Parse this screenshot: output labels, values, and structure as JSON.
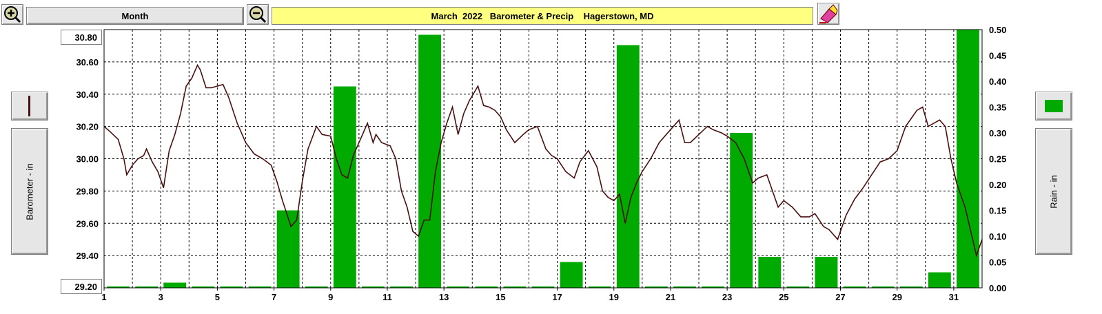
{
  "toolbar": {
    "zoom_in_icon": "magnifier-plus-icon",
    "zoom_out_icon": "magnifier-minus-icon",
    "period_label": "Month",
    "title": "March  2022   Barometer & Precip    Hagerstown, MD",
    "eraser_icon": "eraser-icon"
  },
  "left_panel": {
    "series_icon": "line-legend-icon",
    "axis_label": "Barometer - in",
    "top_readout": "30.80",
    "bottom_readout": "29.20"
  },
  "right_panel": {
    "series_icon": "bar-legend-icon",
    "axis_label": "Rain - in"
  },
  "colors": {
    "barometer_line": "#4a1010",
    "rain_bar": "#00aa00",
    "title_bg": "#ffff80",
    "grid": "#000000"
  },
  "chart_data": {
    "type": "bar+line",
    "title": "March  2022   Barometer & Precip    Hagerstown, MD",
    "x_ticks": [
      "1",
      "3",
      "5",
      "7",
      "9",
      "11",
      "13",
      "15",
      "17",
      "19",
      "21",
      "23",
      "25",
      "27",
      "29",
      "31"
    ],
    "xlim": [
      1,
      32
    ],
    "grid": true,
    "left_axis": {
      "label": "Barometer - in",
      "ylim": [
        29.2,
        30.8
      ],
      "ticks": [
        "29.20",
        "29.40",
        "29.60",
        "29.80",
        "30.00",
        "30.20",
        "30.40",
        "30.60",
        "30.80"
      ]
    },
    "right_axis": {
      "label": "Rain - in",
      "ylim": [
        0.0,
        0.5
      ],
      "ticks": [
        "0.00",
        "0.05",
        "0.10",
        "0.15",
        "0.20",
        "0.25",
        "0.30",
        "0.35",
        "0.40",
        "0.45",
        "0.50"
      ]
    },
    "rain_series": {
      "name": "Rain - in",
      "days": [
        1,
        2,
        3,
        4,
        5,
        6,
        7,
        8,
        9,
        10,
        11,
        12,
        13,
        14,
        15,
        16,
        17,
        18,
        19,
        20,
        21,
        22,
        23,
        24,
        25,
        26,
        27,
        28,
        29,
        30,
        31
      ],
      "values": [
        0,
        0,
        0.01,
        0,
        0,
        0,
        0.15,
        0,
        0.39,
        0,
        0,
        0.49,
        0,
        0,
        0,
        0,
        0.05,
        0,
        0.47,
        0,
        0,
        0,
        0.3,
        0.06,
        0,
        0.06,
        0,
        0,
        0,
        0.03,
        0.5
      ]
    },
    "barometer_series": {
      "name": "Barometer - in",
      "x": [
        1.0,
        1.2,
        1.5,
        1.7,
        1.8,
        2.0,
        2.2,
        2.4,
        2.5,
        2.7,
        2.9,
        3.1,
        3.3,
        3.5,
        3.7,
        3.9,
        4.1,
        4.3,
        4.4,
        4.6,
        4.8,
        5.0,
        5.2,
        5.4,
        5.7,
        6.0,
        6.3,
        6.6,
        6.9,
        7.1,
        7.3,
        7.6,
        7.8,
        8.0,
        8.2,
        8.5,
        8.7,
        9.0,
        9.2,
        9.4,
        9.6,
        9.8,
        10.0,
        10.3,
        10.5,
        10.6,
        10.8,
        11.1,
        11.3,
        11.5,
        11.7,
        11.9,
        12.1,
        12.3,
        12.5,
        12.7,
        12.9,
        13.1,
        13.3,
        13.5,
        13.7,
        13.9,
        14.2,
        14.4,
        14.6,
        14.8,
        15.0,
        15.2,
        15.5,
        15.8,
        16.0,
        16.3,
        16.6,
        16.8,
        17.0,
        17.3,
        17.6,
        17.8,
        18.1,
        18.4,
        18.6,
        18.8,
        19.0,
        19.2,
        19.4,
        19.6,
        19.8,
        20.0,
        20.3,
        20.6,
        21.0,
        21.3,
        21.5,
        21.7,
        22.0,
        22.3,
        22.5,
        22.8,
        23.0,
        23.3,
        23.6,
        23.9,
        24.1,
        24.4,
        24.6,
        24.8,
        25.0,
        25.3,
        25.6,
        25.9,
        26.1,
        26.4,
        26.6,
        26.9,
        27.2,
        27.5,
        27.8,
        28.1,
        28.4,
        28.7,
        29.0,
        29.3,
        29.5,
        29.7,
        29.9,
        30.1,
        30.3,
        30.5,
        30.7,
        30.9,
        31.1,
        31.4,
        31.6,
        31.8,
        32.0
      ],
      "values": [
        30.2,
        30.17,
        30.12,
        30.0,
        29.9,
        29.96,
        30.0,
        30.02,
        30.06,
        29.98,
        29.92,
        29.82,
        30.05,
        30.15,
        30.28,
        30.45,
        30.5,
        30.58,
        30.55,
        30.44,
        30.44,
        30.45,
        30.46,
        30.38,
        30.22,
        30.1,
        30.03,
        30.0,
        29.96,
        29.86,
        29.74,
        29.58,
        29.62,
        29.86,
        30.06,
        30.2,
        30.15,
        30.14,
        30.0,
        29.9,
        29.88,
        30.02,
        30.1,
        30.22,
        30.1,
        30.15,
        30.1,
        30.08,
        30.0,
        29.8,
        29.7,
        29.55,
        29.52,
        29.62,
        29.62,
        29.92,
        30.1,
        30.22,
        30.32,
        30.15,
        30.28,
        30.36,
        30.45,
        30.33,
        30.32,
        30.3,
        30.26,
        30.18,
        30.1,
        30.15,
        30.18,
        30.2,
        30.06,
        30.02,
        30.0,
        29.92,
        29.88,
        29.98,
        30.05,
        29.95,
        29.8,
        29.76,
        29.74,
        29.78,
        29.6,
        29.76,
        29.85,
        29.92,
        30.0,
        30.1,
        30.18,
        30.24,
        30.1,
        30.1,
        30.15,
        30.2,
        30.18,
        30.16,
        30.14,
        30.1,
        30.0,
        29.85,
        29.88,
        29.9,
        29.8,
        29.7,
        29.74,
        29.7,
        29.64,
        29.64,
        29.66,
        29.58,
        29.56,
        29.5,
        29.65,
        29.75,
        29.82,
        29.9,
        29.98,
        30.0,
        30.05,
        30.2,
        30.25,
        30.3,
        30.32,
        30.2,
        30.22,
        30.24,
        30.2,
        30.0,
        29.85,
        29.7,
        29.55,
        29.4,
        29.5
      ]
    }
  }
}
